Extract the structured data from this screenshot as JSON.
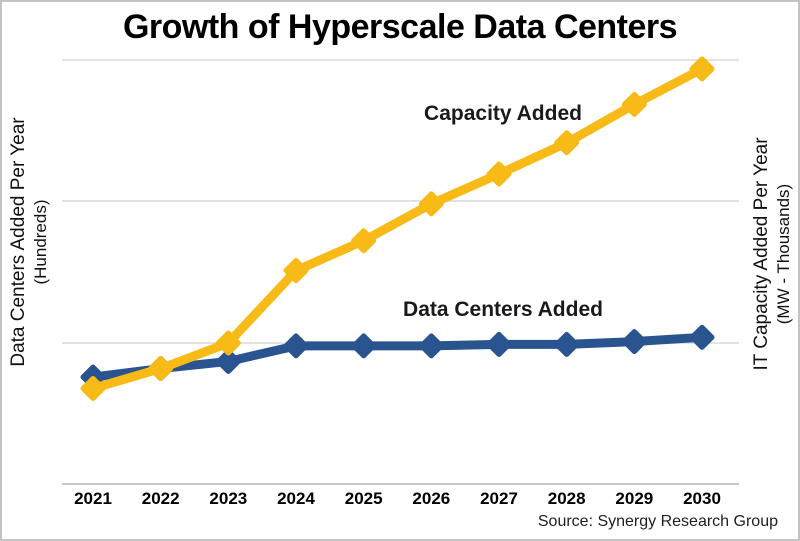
{
  "title": "Growth of Hyperscale Data Centers",
  "left_axis": {
    "label": "Data Centers Added Per Year",
    "sub_label": "(Hundreds)"
  },
  "right_axis": {
    "label": "IT Capacity Added Per Year",
    "sub_label": "(MW - Thousands)"
  },
  "source": "Source: Synergy Research Group",
  "colors": {
    "capacity_line": "#F8BA16",
    "data_centers_line": "#2A5490",
    "gridline": "#d9d9d9",
    "axis_line": "#c6c6c6",
    "text": "#000000"
  },
  "chart_data": {
    "type": "line",
    "title": "Growth of Hyperscale Data Centers",
    "x": [
      "2021",
      "2022",
      "2023",
      "2024",
      "2025",
      "2026",
      "2027",
      "2028",
      "2029",
      "2030"
    ],
    "series": [
      {
        "name": "Capacity Added",
        "axis": "right",
        "units": "IT Capacity Added Per Year (MW - Thousands)",
        "color": "#F8BA16",
        "values": [
          0.68,
          0.82,
          1.0,
          1.51,
          1.72,
          1.98,
          2.19,
          2.41,
          2.68,
          2.93
        ]
      },
      {
        "name": "Data Centers Added",
        "axis": "left",
        "units": "Data Centers Added Per Year (Hundreds)",
        "color": "#2A5490",
        "values": [
          0.76,
          0.82,
          0.87,
          0.98,
          0.98,
          0.98,
          0.99,
          0.99,
          1.01,
          1.04
        ]
      }
    ],
    "ylim": [
      0,
      3
    ],
    "gridline_values": [
      0,
      1,
      2,
      3
    ],
    "grid": true,
    "y_tick_labels": "none",
    "legend_position": "in-plot text annotations",
    "marker": "diamond"
  }
}
